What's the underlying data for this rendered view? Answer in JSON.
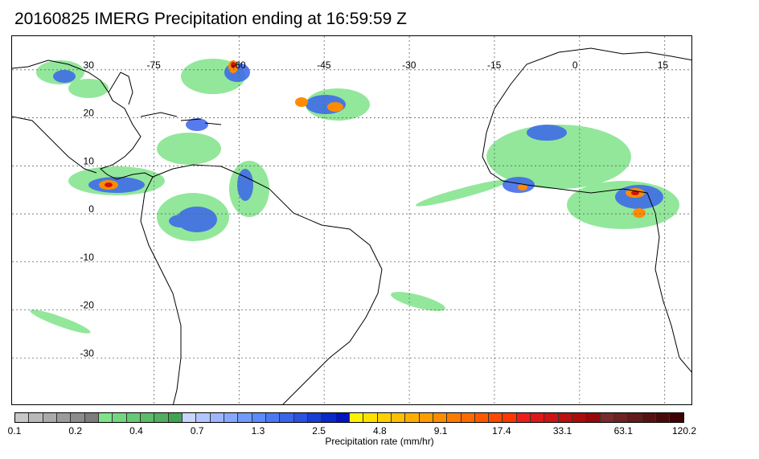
{
  "title": "20160825 IMERG Precipitation ending at 16:59:59 Z",
  "map": {
    "lon_range": [
      -100,
      20
    ],
    "lat_range": [
      -40,
      37
    ],
    "lon_labels": [
      "-75",
      "-60",
      "-45",
      "-30",
      "-15",
      "0",
      "15"
    ],
    "lon_values": [
      -75,
      -60,
      -45,
      -30,
      -15,
      0,
      15
    ],
    "lat_labels": [
      "30",
      "20",
      "10",
      "0",
      "-10",
      "-20",
      "-30"
    ],
    "lat_values": [
      30,
      20,
      10,
      0,
      -10,
      -20,
      -30
    ]
  },
  "colorbar": {
    "label": "Precipitation rate (mm/hr)",
    "tick_labels": [
      "0.1",
      "0.2",
      "0.4",
      "0.7",
      "1.3",
      "2.5",
      "4.8",
      "9.1",
      "17.4",
      "33.1",
      "63.1",
      "120.2"
    ],
    "colors": [
      "#c8c8c8",
      "#b9b9b9",
      "#aaaaaa",
      "#9b9b9b",
      "#8c8c8c",
      "#7d7d7d",
      "#7fe38a",
      "#73d67f",
      "#67c974",
      "#5bbc69",
      "#4faf5e",
      "#43a253",
      "#c9d4ff",
      "#b3c6ff",
      "#9cb7ff",
      "#86a8ff",
      "#709aff",
      "#5a8bff",
      "#4a78f5",
      "#3a64ea",
      "#2a51df",
      "#1a3dd4",
      "#0a29c9",
      "#0015be",
      "#fff200",
      "#ffe100",
      "#ffd000",
      "#ffbf00",
      "#ffae00",
      "#ff9d00",
      "#ff8c00",
      "#ff7b00",
      "#ff6a00",
      "#ff5900",
      "#ff4800",
      "#ff3700",
      "#ee1c1c",
      "#dd1818",
      "#cc1414",
      "#bb1010",
      "#aa0c0c",
      "#990808",
      "#7a2a2a",
      "#6e2222",
      "#621a1a",
      "#561212",
      "#4a0a0a",
      "#3e0202"
    ]
  }
}
